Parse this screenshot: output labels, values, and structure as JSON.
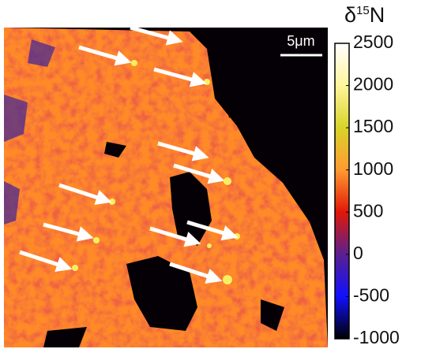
{
  "scale_bar": {
    "label": "5μm"
  },
  "colorbar": {
    "label": {
      "symbol": "δ",
      "superscript": "15",
      "element": "N"
    },
    "lim": [
      -1000,
      2500
    ],
    "ticks": [
      2500,
      2000,
      1500,
      1000,
      500,
      0,
      -500,
      -1000
    ],
    "colors": [
      "#ffffff",
      "#fff59a",
      "#d8d42a",
      "#ff9a30",
      "#e01808",
      "#5a2090",
      "#1010ff",
      "#000000"
    ]
  }
}
